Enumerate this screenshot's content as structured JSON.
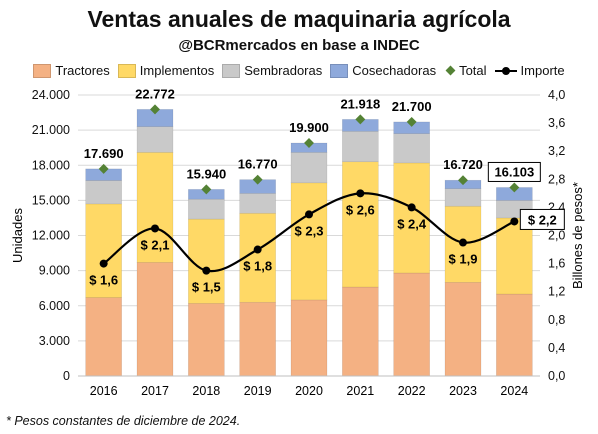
{
  "title": "Ventas anuales de maquinaria agrícola",
  "subtitle": "@BCRmercados en base a INDEC",
  "footnote": "* Pesos constantes de diciembre de 2024.",
  "legend": {
    "tractores": "Tractores",
    "implementos": "Implementos",
    "sembradoras": "Sembradoras",
    "cosechadoras": "Cosechadoras",
    "total": "Total",
    "importe": "Importe"
  },
  "colors": {
    "tractores": "#f4b183",
    "implementos": "#ffd966",
    "sembradoras": "#c9c9c9",
    "cosechadoras": "#8ea9db",
    "total": "#548235",
    "importe": "#000000"
  },
  "chart_data": {
    "type": "bar",
    "stacked": true,
    "categories": [
      "2016",
      "2017",
      "2018",
      "2019",
      "2020",
      "2021",
      "2022",
      "2023",
      "2024"
    ],
    "series": [
      {
        "name": "Tractores",
        "values": [
          6700,
          9700,
          6200,
          6300,
          6500,
          7600,
          8800,
          8000,
          7000
        ]
      },
      {
        "name": "Implementos",
        "values": [
          8000,
          9400,
          7200,
          7600,
          10000,
          10700,
          9400,
          6500,
          6500
        ]
      },
      {
        "name": "Sembradoras",
        "values": [
          2000,
          2200,
          1700,
          1700,
          2600,
          2600,
          2500,
          1500,
          1500
        ]
      },
      {
        "name": "Cosechadoras",
        "values": [
          990,
          1472,
          840,
          1170,
          800,
          1018,
          1000,
          720,
          1103
        ]
      }
    ],
    "total": {
      "name": "Total",
      "values": [
        17690,
        22772,
        15940,
        16770,
        19900,
        21918,
        21700,
        16720,
        16103
      ],
      "labels": [
        "17.690",
        "22.772",
        "15.940",
        "16.770",
        "19.900",
        "21.918",
        "21.700",
        "16.720",
        "16.103"
      ]
    },
    "importe": {
      "name": "Importe",
      "values": [
        1.6,
        2.1,
        1.5,
        1.8,
        2.3,
        2.6,
        2.4,
        1.9,
        2.2
      ],
      "labels": [
        "$ 1,6",
        "$ 2,1",
        "$ 1,5",
        "$ 1,8",
        "$ 2,3",
        "$ 2,6",
        "$ 2,4",
        "$ 1,9",
        "$ 2,2"
      ]
    },
    "ylabel": "Unidades",
    "y2label": "Billones de pesos*",
    "ylim": [
      0,
      24000
    ],
    "y2lim": [
      0,
      4.0
    ],
    "yticks": [
      "0",
      "3.000",
      "6.000",
      "9.000",
      "12.000",
      "15.000",
      "18.000",
      "21.000",
      "24.000"
    ],
    "y2ticks": [
      "0,0",
      "0,4",
      "0,8",
      "1,2",
      "1,6",
      "2,0",
      "2,4",
      "2,8",
      "3,2",
      "3,6",
      "4,0"
    ],
    "grid": true,
    "legend_position": "top"
  }
}
